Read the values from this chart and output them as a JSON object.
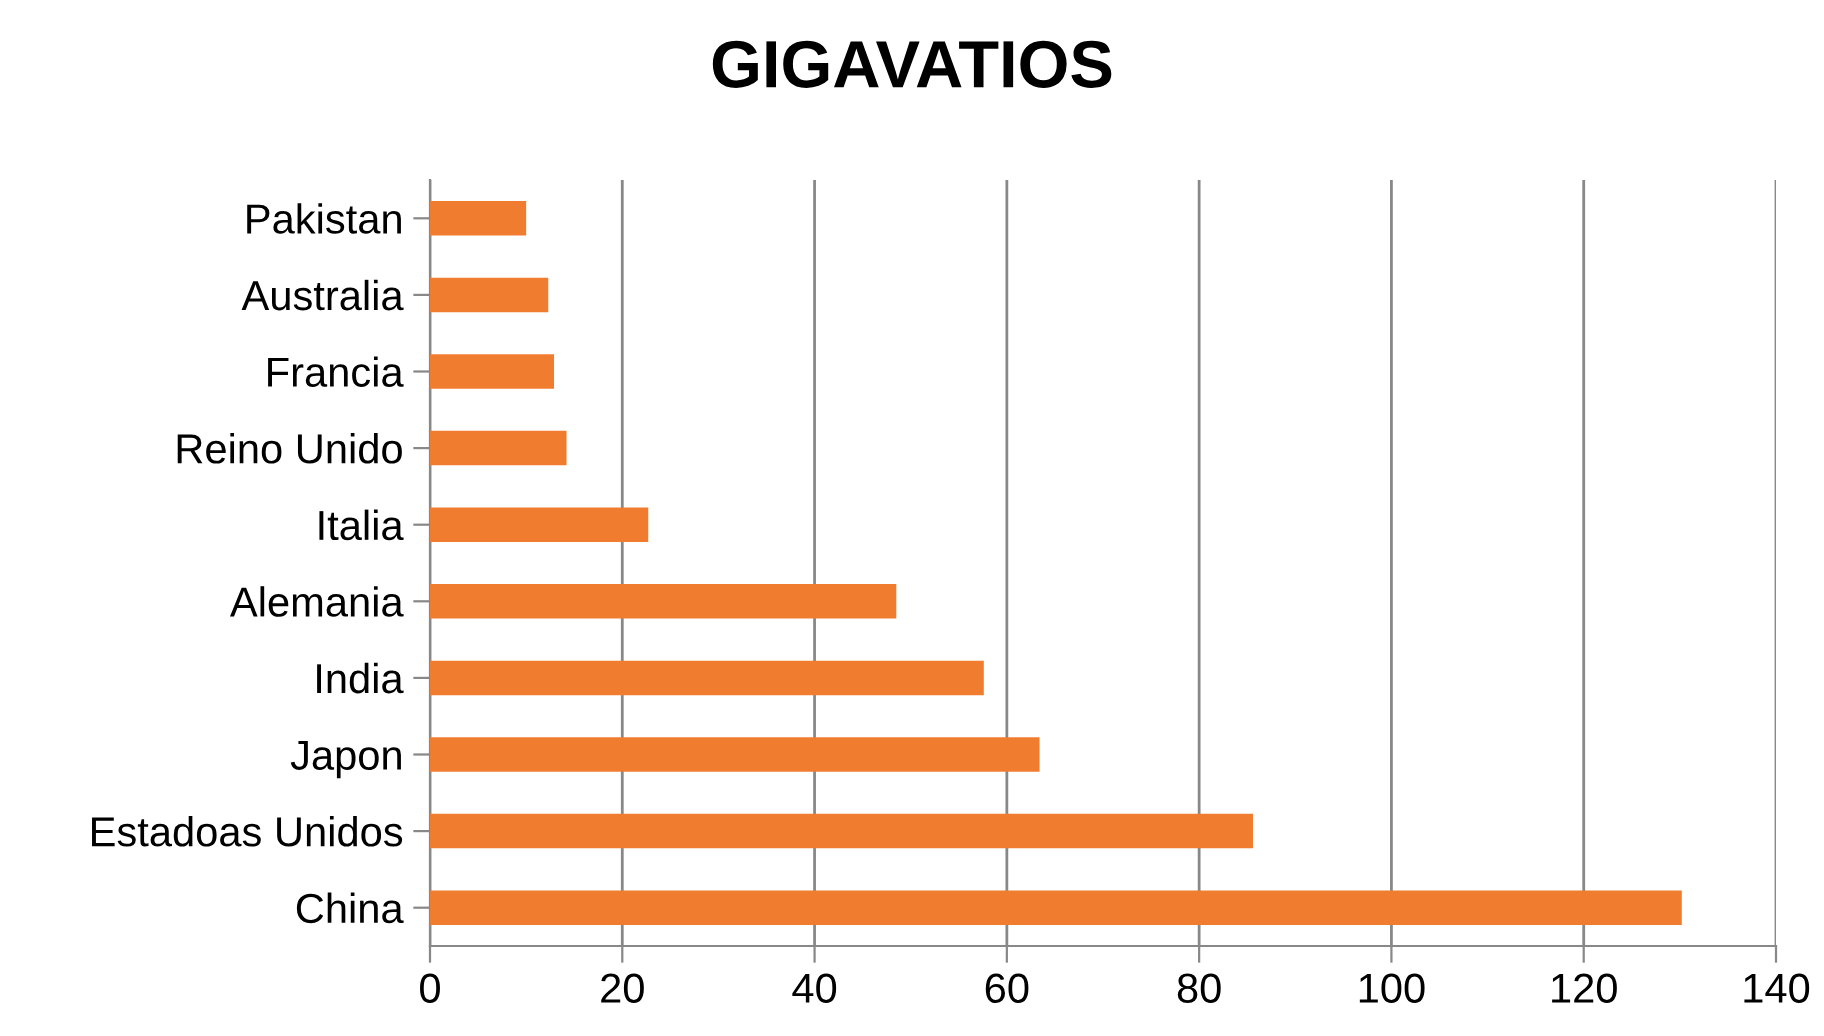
{
  "chart_data": {
    "type": "bar",
    "orientation": "horizontal",
    "title": "GIGAVATIOS",
    "categories": [
      "Pakistan",
      "Australia",
      "Francia",
      "Reino Unido",
      "Italia",
      "Alemania",
      "India",
      "Japon",
      "Estadoas Unidos",
      "China"
    ],
    "values": [
      10.0,
      12.3,
      12.9,
      14.2,
      22.7,
      48.5,
      57.6,
      63.4,
      85.6,
      130.2
    ],
    "color": "#f07c30",
    "xlim": [
      0,
      140
    ],
    "xticks": [
      0,
      20,
      40,
      60,
      80,
      100,
      120,
      140
    ],
    "grid": "x"
  }
}
